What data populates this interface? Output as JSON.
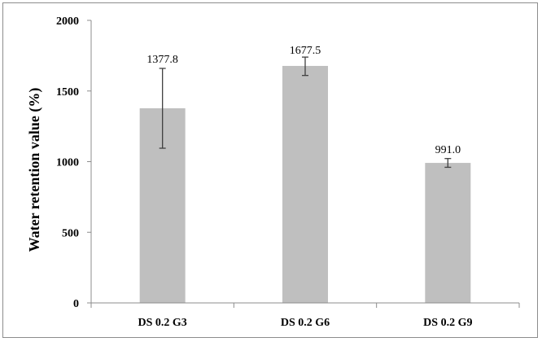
{
  "chart_data": {
    "type": "bar",
    "title": "",
    "xlabel": "",
    "ylabel": "Water retention value (%)",
    "categories": [
      "DS 0.2 G3",
      "DS 0.2 G6",
      "DS 0.2 G9"
    ],
    "values": [
      1377.8,
      1677.5,
      991.0
    ],
    "value_labels": [
      "1377.8",
      "1677.5",
      "991.0"
    ],
    "error_low": [
      1095,
      1610,
      960
    ],
    "error_high": [
      1660,
      1740,
      1022
    ],
    "ylim": [
      0,
      2000
    ],
    "yticks": [
      0,
      500,
      1000,
      1500,
      2000
    ],
    "ytick_labels": [
      "0",
      "500",
      "1000",
      "1500",
      "2000"
    ],
    "grid": false,
    "legend": "none",
    "bar_color": "#bfbfbf",
    "axis_color": "#8c8c8c",
    "error_bar_color": "#404040"
  }
}
